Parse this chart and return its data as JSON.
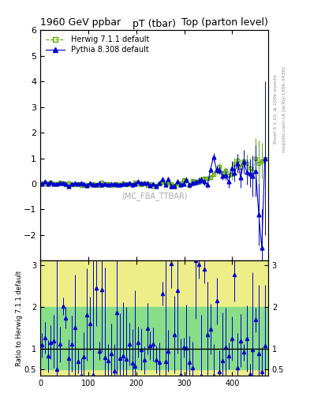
{
  "title_left": "1960 GeV ppbar",
  "title_right": "Top (parton level)",
  "subplot_title": "pT (tbar)",
  "watermark": "(MC_FBA_TTBAR)",
  "right_label": "Rivet 3.1.10, ≥ 100k events",
  "right_label2": "mcplots.cern.ch [arXiv:1306.3436]",
  "ylabel_ratio": "Ratio to Herwig 7.1.1 default",
  "legend_herwig": "Herwig 7.1.1 default",
  "legend_pythia": "Pythia 8.308 default",
  "xlim": [
    0,
    475
  ],
  "ylim_main": [
    -3,
    6
  ],
  "ylim_ratio": [
    0.35,
    3.1
  ],
  "yticks_main": [
    -2,
    -1,
    0,
    1,
    2,
    3,
    4,
    5,
    6
  ],
  "yticks_ratio": [
    0.5,
    1,
    2,
    3
  ],
  "herwig_color": "#55aa00",
  "pythia_color": "#0000cc",
  "band_green": "#88dd88",
  "band_yellow": "#eeee88",
  "ratio_line_color": "black"
}
